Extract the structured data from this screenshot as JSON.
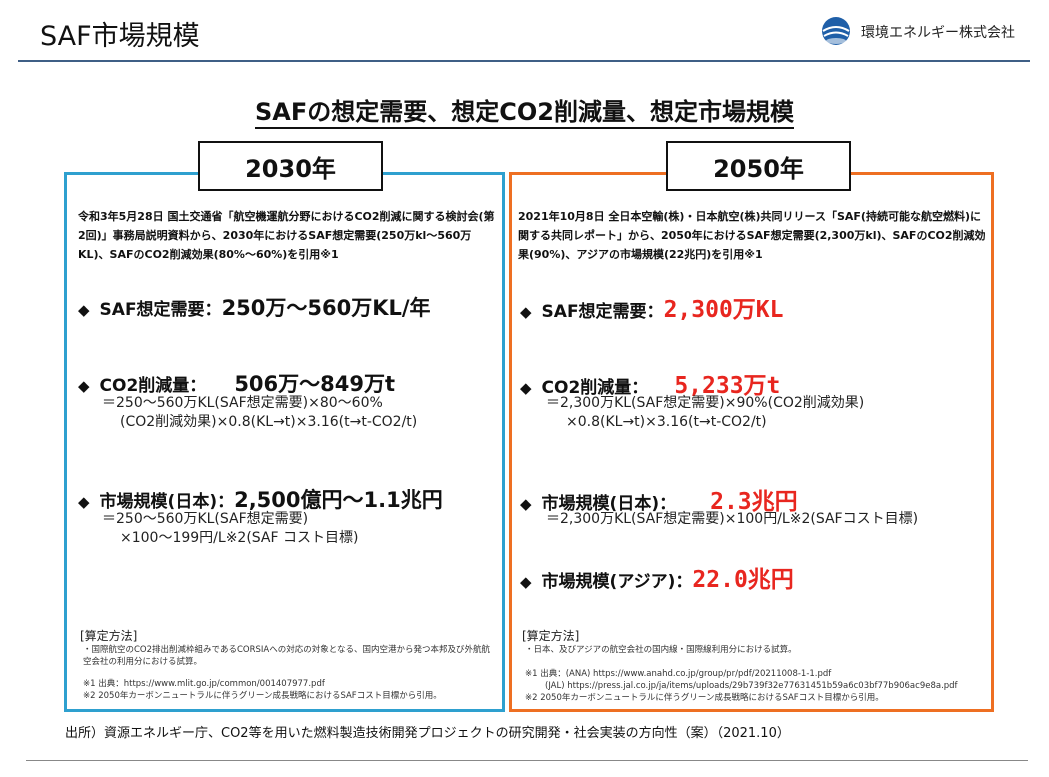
{
  "header": {
    "title": "SAF市場規模",
    "company": "環境エネルギー株式会社"
  },
  "main_title": "SAFの想定需要、想定CO2削減量、想定市場規模",
  "panel_2030": {
    "year": "2030年",
    "intro": "令和3年5月28日 国土交通省「航空機運航分野におけるCO2削減に関する検討会(第2回)」事務局説明資料から、2030年におけるSAF想定需要(250万kl〜560万KL)、SAFのCO2削減効果(80%〜60%)を引用※1",
    "demand_label": "SAF想定需要：",
    "demand_value": "250万〜560万KL/年",
    "co2_label": "CO2削減量：",
    "co2_value": "506万〜849万t",
    "co2_formula_1": "＝250〜560万KL(SAF想定需要)×80〜60%",
    "co2_formula_2": "(CO2削減効果)×0.8(KL→t)×3.16(t→t-CO2/t)",
    "market_label": "市場規模(日本)：",
    "market_value": "2,500億円〜1.1兆円",
    "market_formula_1": "＝250〜560万KL(SAF想定需要)",
    "market_formula_2": "×100〜199円/L※2(SAF コスト目標)",
    "method_title": "[算定方法]",
    "method_note": "・国際航空のCO2排出削減枠組みであるCORSIAへの対応の対象となる、国内空港から発つ本邦及び外航航空会社の利用分における試算。",
    "note_1": "※1 出典：https://www.mlit.go.jp/common/001407977.pdf",
    "note_2": "※2 2050年カーボンニュートラルに伴うグリーン成長戦略におけるSAFコスト目標から引用。"
  },
  "panel_2050": {
    "year": "2050年",
    "intro": "2021年10月8日 全日本空輸(株)・日本航空(株)共同リリース「SAF(持続可能な航空燃料)に関する共同レポート」から、2050年におけるSAF想定需要(2,300万kl)、SAFのCO2削減効果(90%)、アジアの市場規模(22兆円)を引用※1",
    "demand_label": "SAF想定需要：",
    "demand_value": "2,300万KL",
    "co2_label": "CO2削減量：",
    "co2_value": "5,233万t",
    "co2_formula_1": "＝2,300万KL(SAF想定需要)×90%(CO2削減効果)",
    "co2_formula_2": "×0.8(KL→t)×3.16(t→t-CO2/t)",
    "market_jp_label": "市場規模(日本)：",
    "market_jp_value": "2.3兆円",
    "market_jp_formula": "＝2,300万KL(SAF想定需要)×100円/L※2(SAFコスト目標)",
    "market_asia_label": "市場規模(アジア)：",
    "market_asia_value": "22.0兆円",
    "method_title": "[算定方法]",
    "method_note": "・日本、及びアジアの航空会社の国内線・国際線利用分における試算。",
    "note_1a": "※1 出典：(ANA) https://www.anahd.co.jp/group/pr/pdf/20211008-1-1.pdf",
    "note_1b": "(JAL) https://press.jal.co.jp/ja/items/uploads/29b739f32e77631451b59a6c03bf77b906ac9e8a.pdf",
    "note_2": "※2 2050年カーボンニュートラルに伴うグリーン成長戦略におけるSAFコスト目標から引用。"
  },
  "diamond": "◆",
  "source": "出所）資源エネルギー庁、CO2等を用いた燃料製造技術開発プロジェクトの研究開発・社会実装の方向性（案）（2021.10）",
  "colors": {
    "header_rule": "#3f5f86",
    "panel_2030_border": "#2ea0cf",
    "panel_2050_border": "#ee6f22",
    "highlight_red": "#e8261f"
  },
  "icons": {
    "logo": "globe-logo-icon"
  }
}
